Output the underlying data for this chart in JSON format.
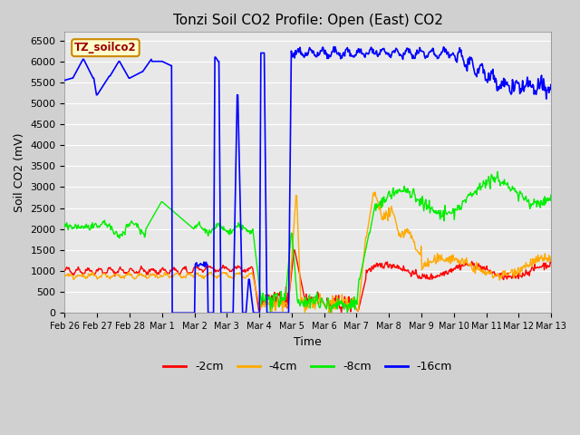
{
  "title": "Tonzi Soil CO2 Profile: Open (East) CO2",
  "xlabel": "Time",
  "ylabel": "Soil CO2 (mV)",
  "ylim": [
    0,
    6700
  ],
  "yticks": [
    0,
    500,
    1000,
    1500,
    2000,
    2500,
    3000,
    3500,
    4000,
    4500,
    5000,
    5500,
    6000,
    6500
  ],
  "fig_bg": "#d0d0d0",
  "plot_bg": "#e8e8e8",
  "legend_label": "TZ_soilco2",
  "legend_bg": "#ffffcc",
  "legend_border": "#cc8800",
  "series_colors": {
    "2cm": "#ff0000",
    "4cm": "#ffaa00",
    "8cm": "#00ee00",
    "16cm": "#0000ff"
  },
  "series_labels": [
    "-2cm",
    "-4cm",
    "-8cm",
    "-16cm"
  ],
  "xtick_labels": [
    "Feb 26",
    "Feb 27",
    "Feb 28",
    "Mar 1",
    "Mar 2",
    "Mar 3",
    "Mar 4",
    "Mar 5",
    "Mar 6",
    "Mar 7",
    "Mar 8",
    "Mar 9",
    "Mar 10",
    "Mar 11",
    "Mar 12",
    "Mar 13"
  ],
  "grid_color": "#ffffff",
  "title_fontsize": 11,
  "label_fontsize": 9,
  "tick_fontsize": 8,
  "xtick_fontsize": 7
}
